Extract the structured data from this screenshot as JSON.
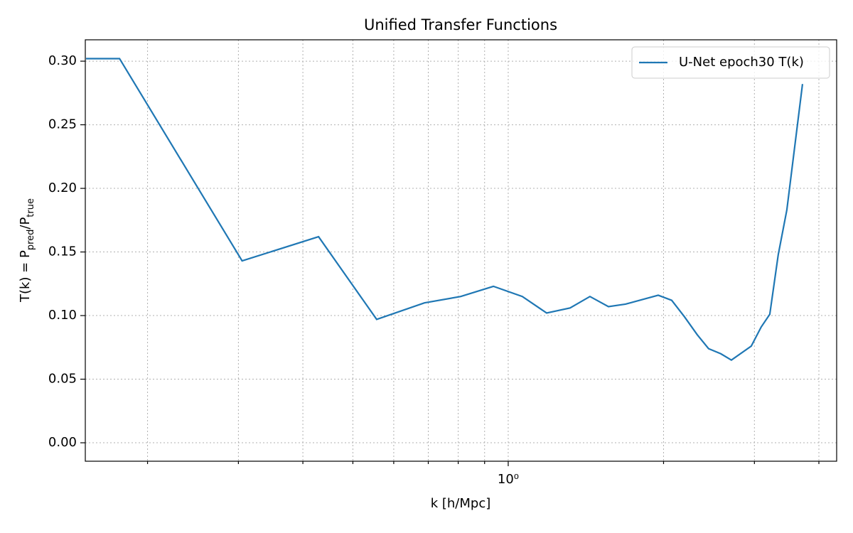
{
  "chart_data": {
    "type": "line",
    "title": "Unified Transfer Functions",
    "x_label": "k [h/Mpc]",
    "y_label": [
      "T(k) = P",
      "pred",
      "/P",
      "true"
    ],
    "x": [
      0.152,
      0.1765,
      0.305,
      0.429,
      0.556,
      0.688,
      0.809,
      0.936,
      1.065,
      1.187,
      1.318,
      1.44,
      1.564,
      1.688,
      1.953,
      2.074,
      2.196,
      2.324,
      2.445,
      2.582,
      2.707,
      2.958,
      3.092,
      3.213,
      3.337,
      3.467,
      3.718
    ],
    "series": [
      {
        "name": "U-Net epoch30 T(k)",
        "color": "#1f77b4",
        "values": [
          0.302,
          0.302,
          0.143,
          0.162,
          0.097,
          0.11,
          0.115,
          0.123,
          0.115,
          0.102,
          0.106,
          0.115,
          0.107,
          0.109,
          0.116,
          0.112,
          0.099,
          0.085,
          0.074,
          0.07,
          0.065,
          0.076,
          0.091,
          0.101,
          0.148,
          0.183,
          0.282
        ]
      }
    ],
    "x_log_scale": true,
    "xlim": [
      0.1515,
      4.33
    ],
    "xticks": [
      {
        "value": 1,
        "label": "10⁰"
      }
    ],
    "x_minor_ticks": [
      0.2,
      0.3,
      0.4,
      0.5,
      0.6,
      0.7,
      0.8,
      0.9,
      2,
      3,
      4
    ],
    "ylim": [
      -0.0145,
      0.3168
    ],
    "yticks": [
      {
        "value": 0,
        "label": "0.00"
      },
      {
        "value": 0.05,
        "label": "0.05"
      },
      {
        "value": 0.1,
        "label": "0.10"
      },
      {
        "value": 0.15,
        "label": "0.15"
      },
      {
        "value": 0.2,
        "label": "0.20"
      },
      {
        "value": 0.25,
        "label": "0.25"
      },
      {
        "value": 0.3,
        "label": "0.30"
      }
    ],
    "grid": true,
    "legend_position": "upper-right"
  }
}
